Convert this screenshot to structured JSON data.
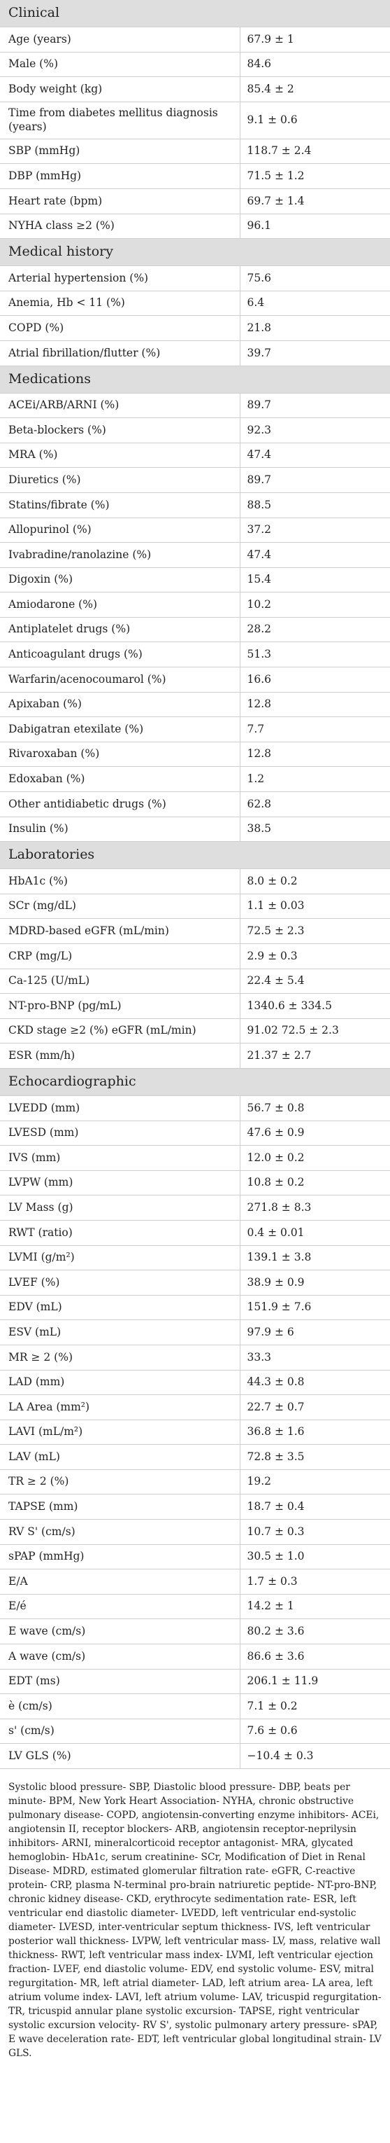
{
  "sections": [
    {
      "title": "Clinical",
      "rows": [
        [
          "Age (years)",
          "67.9 ± 1"
        ],
        [
          "Male (%)",
          "84.6"
        ],
        [
          "Body weight (kg)",
          "85.4 ± 2"
        ],
        [
          "Time from diabetes mellitus diagnosis (years)",
          "9.1 ± 0.6"
        ],
        [
          "SBP (mmHg)",
          "118.7 ± 2.4"
        ],
        [
          "DBP (mmHg)",
          "71.5 ± 1.2"
        ],
        [
          "Heart rate (bpm)",
          "69.7 ± 1.4"
        ],
        [
          "NYHA class ≥2 (%)",
          "96.1"
        ]
      ]
    },
    {
      "title": "Medical history",
      "rows": [
        [
          "Arterial hypertension (%)",
          "75.6"
        ],
        [
          "Anemia, Hb < 11 (%)",
          "6.4"
        ],
        [
          "COPD (%)",
          "21.8"
        ],
        [
          "Atrial fibrillation/flutter (%)",
          "39.7"
        ]
      ]
    },
    {
      "title": "Medications",
      "rows": [
        [
          "ACEi/ARB/ARNI (%)",
          "89.7"
        ],
        [
          "Beta-blockers (%)",
          "92.3"
        ],
        [
          "MRA (%)",
          "47.4"
        ],
        [
          "Diuretics (%)",
          "89.7"
        ],
        [
          "Statins/fibrate (%)",
          "88.5"
        ],
        [
          "Allopurinol (%)",
          "37.2"
        ],
        [
          "Ivabradine/ranolazine (%)",
          "47.4"
        ],
        [
          "Digoxin (%)",
          "15.4"
        ],
        [
          "Amiodarone (%)",
          "10.2"
        ],
        [
          "Antiplatelet drugs (%)",
          "28.2"
        ],
        [
          "Anticoagulant drugs (%)",
          "51.3"
        ],
        [
          "Warfarin/acenocoumarol (%)",
          "16.6"
        ],
        [
          "Apixaban (%)",
          "12.8"
        ],
        [
          "Dabigatran etexilate (%)",
          "7.7"
        ],
        [
          "Rivaroxaban (%)",
          "12.8"
        ],
        [
          "Edoxaban (%)",
          "1.2"
        ],
        [
          "Other antidiabetic drugs (%)",
          "62.8"
        ],
        [
          "Insulin (%)",
          "38.5"
        ]
      ]
    },
    {
      "title": "Laboratories",
      "rows": [
        [
          "HbA1c (%)",
          "8.0 ± 0.2"
        ],
        [
          "SCr (mg/dL)",
          "1.1 ± 0.03"
        ],
        [
          "MDRD-based eGFR (mL/min)",
          "72.5 ± 2.3"
        ],
        [
          "CRP (mg/L)",
          "2.9 ± 0.3"
        ],
        [
          "Ca-125 (U/mL)",
          "22.4 ± 5.4"
        ],
        [
          "NT-pro-BNP (pg/mL)",
          "1340.6 ± 334.5"
        ],
        [
          "CKD stage ≥2 (%) eGFR (mL/min)",
          "91.02 72.5 ± 2.3"
        ],
        [
          "ESR (mm/h)",
          "21.37 ± 2.7"
        ]
      ]
    },
    {
      "title": "Echocardiographic",
      "rows": [
        [
          "LVEDD (mm)",
          "56.7 ± 0.8"
        ],
        [
          "LVESD (mm)",
          "47.6 ± 0.9"
        ],
        [
          "IVS (mm)",
          "12.0 ± 0.2"
        ],
        [
          "LVPW (mm)",
          "10.8 ± 0.2"
        ],
        [
          "LV Mass (g)",
          "271.8 ± 8.3"
        ],
        [
          "RWT (ratio)",
          "0.4 ± 0.01"
        ],
        [
          "LVMI (g/m²)",
          "139.1 ± 3.8"
        ],
        [
          "LVEF (%)",
          "38.9 ± 0.9"
        ],
        [
          "EDV (mL)",
          "151.9 ± 7.6"
        ],
        [
          "ESV (mL)",
          "97.9 ± 6"
        ],
        [
          "MR ≥ 2 (%)",
          "33.3"
        ],
        [
          "LAD (mm)",
          "44.3 ± 0.8"
        ],
        [
          "LA Area (mm²)",
          "22.7 ± 0.7"
        ],
        [
          "LAVI (mL/m²)",
          "36.8 ± 1.6"
        ],
        [
          "LAV (mL)",
          "72.8 ± 3.5"
        ],
        [
          "TR ≥ 2 (%)",
          "19.2"
        ],
        [
          "TAPSE (mm)",
          "18.7 ± 0.4"
        ],
        [
          "RV S' (cm/s)",
          "10.7 ± 0.3"
        ],
        [
          "sPAP (mmHg)",
          "30.5 ± 1.0"
        ],
        [
          "E/A",
          "1.7 ± 0.3"
        ],
        [
          "E/é",
          "14.2 ± 1"
        ],
        [
          "E wave (cm/s)",
          "80.2 ± 3.6"
        ],
        [
          "A wave (cm/s)",
          "86.6 ± 3.6"
        ],
        [
          "EDT (ms)",
          "206.1 ± 11.9"
        ],
        [
          "è (cm/s)",
          "7.1 ± 0.2"
        ],
        [
          "s' (cm/s)",
          "7.6 ± 0.6"
        ],
        [
          "LV GLS (%)",
          "−10.4 ± 0.3"
        ]
      ]
    }
  ],
  "footnote": "Systolic blood pressure- SBP, Diastolic blood pressure- DBP, beats per minute- BPM, New York Heart Association- NYHA, chronic obstructive pulmonary disease- COPD, angiotensin-converting enzyme inhibitors- ACEi, angiotensin II, receptor blockers- ARB, angiotensin receptor-neprilysin inhibitors- ARNI, mineralcorticoid receptor antagonist- MRA, glycated hemoglobin- HbA1c, serum creatinine- SCr, Modification of Diet in Renal Disease- MDRD, estimated glomerular filtration rate- eGFR, C-reactive protein- CRP, plasma N-terminal pro-brain natriuretic peptide- NT-pro-BNP, chronic kidney disease- CKD, erythrocyte sedimentation rate- ESR, left ventricular end diastolic diameter- LVEDD, left ventricular end-systolic diameter- LVESD, inter-ventricular septum thickness- IVS, left ventricular posterior wall thickness- LVPW, left ventricular mass- LV, mass, relative wall thickness- RWT, left ventricular mass index- LVMI, left ventricular ejection fraction- LVEF, end diastolic volume- EDV, end systolic volume- ESV, mitral regurgitation- MR, left atrial diameter- LAD, left atrium area- LA area, left atrium volume index- LAVI, left atrium volume- LAV, tricuspid regurgitation- TR, tricuspid annular plane systolic excursion- TAPSE, right ventricular systolic excursion velocity- RV S', systolic pulmonary artery pressure- sPAP, E wave deceleration rate- EDT, left ventricular global longitudinal strain- LV GLS."
}
